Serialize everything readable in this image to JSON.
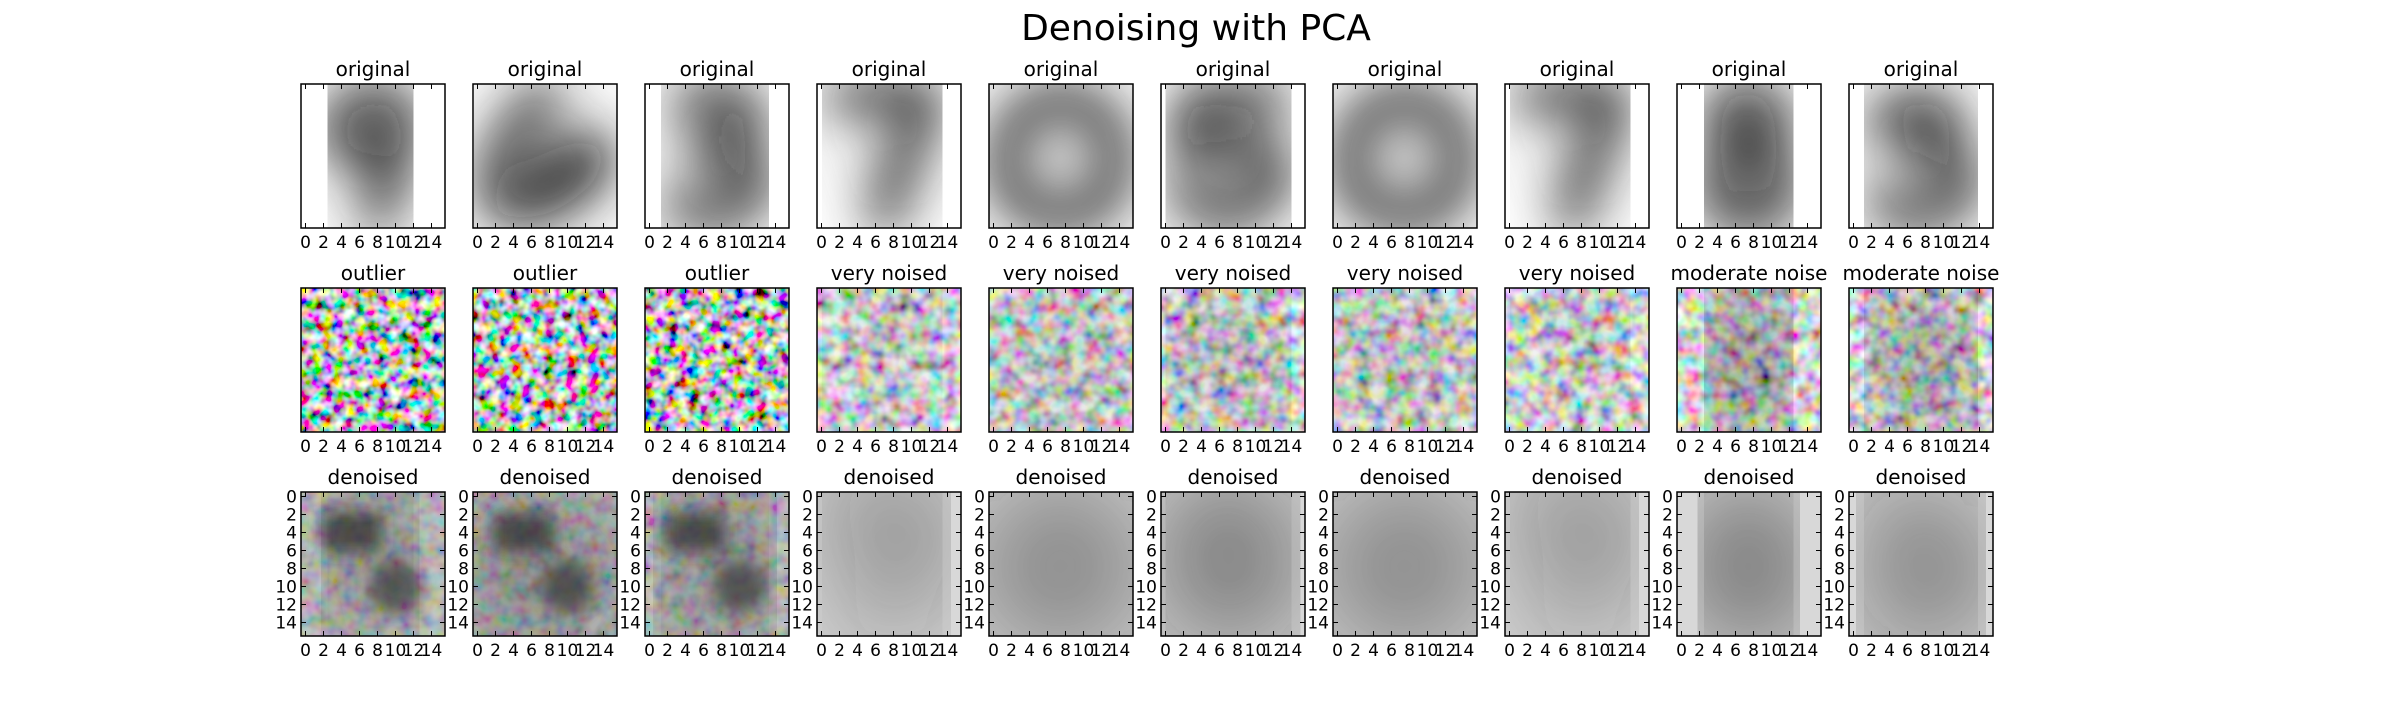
{
  "figure": {
    "title": "Denoising with PCA"
  },
  "chart_data": {
    "type": "image-grid",
    "rows": 3,
    "cols": 10,
    "colormap": "gray",
    "image_size": [
      16,
      16
    ],
    "x_ticks": [
      "0",
      "2",
      "4",
      "6",
      "8",
      "10",
      "12",
      "14"
    ],
    "y_ticks": [
      "0",
      "2",
      "4",
      "6",
      "8",
      "10",
      "12",
      "14"
    ],
    "row_titles": [
      [
        "original",
        "original",
        "original",
        "original",
        "original",
        "original",
        "original",
        "original",
        "original",
        "original"
      ],
      [
        "outlier",
        "outlier",
        "outlier",
        "very noised",
        "very noised",
        "very noised",
        "very noised",
        "very noised",
        "moderate noise",
        "moderate noise"
      ],
      [
        "denoised",
        "denoised",
        "denoised",
        "denoised",
        "denoised",
        "denoised",
        "denoised",
        "denoised",
        "denoised",
        "denoised"
      ]
    ],
    "digits": [
      "9",
      "6",
      "3",
      "7",
      "0",
      "5",
      "0",
      "7",
      "8",
      "3"
    ]
  }
}
